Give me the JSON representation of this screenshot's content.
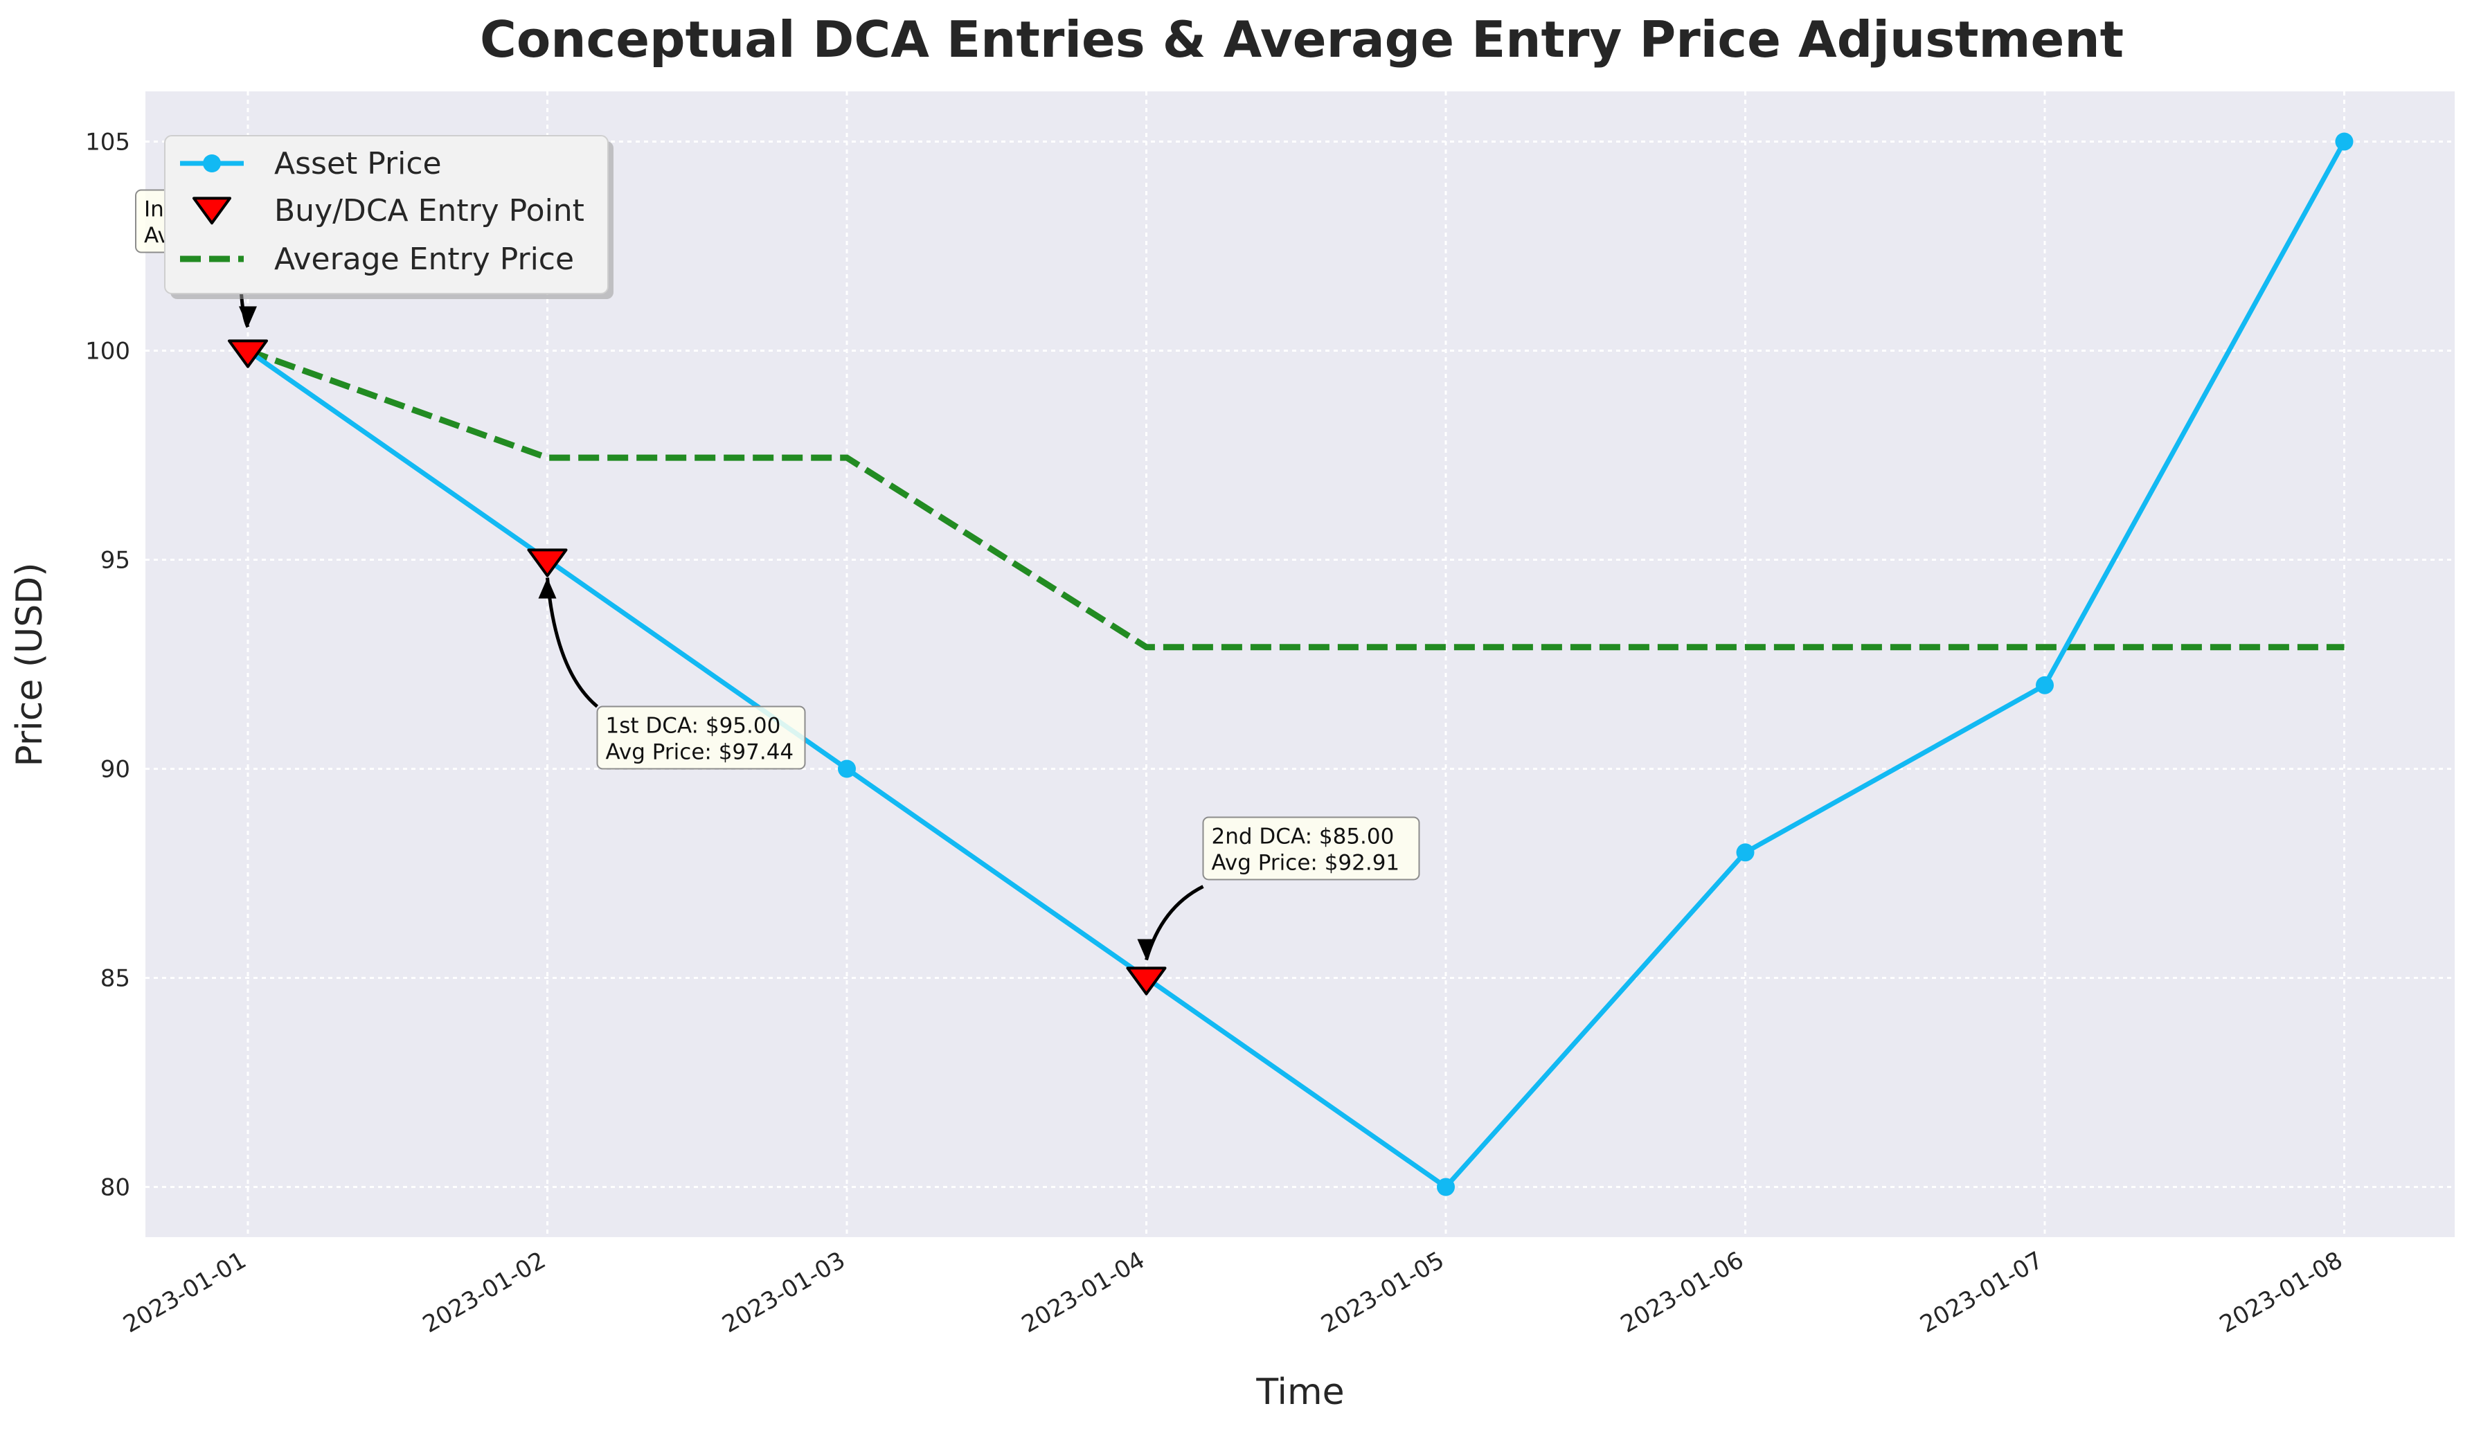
{
  "chart_data": {
    "type": "line",
    "title": "Conceptual DCA Entries & Average Entry Price Adjustment",
    "xlabel": "Time",
    "ylabel": "Price (USD)",
    "x": [
      "2023-01-01",
      "2023-01-02",
      "2023-01-03",
      "2023-01-04",
      "2023-01-05",
      "2023-01-06",
      "2023-01-07",
      "2023-01-08"
    ],
    "ylim": [
      78.8,
      106.2
    ],
    "yticks": [
      80,
      85,
      90,
      95,
      100,
      105
    ],
    "grid": true,
    "legend_position": "top-left",
    "series": [
      {
        "name": "Asset Price",
        "style": "line-with-markers",
        "color": "#12b9f3",
        "values": [
          100,
          95,
          90,
          85,
          80,
          88,
          92,
          105
        ]
      },
      {
        "name": "Buy/DCA Entry Point",
        "style": "triangle-down-markers",
        "color": "#ff0000",
        "points": [
          {
            "x": "2023-01-01",
            "y": 100
          },
          {
            "x": "2023-01-02",
            "y": 95
          },
          {
            "x": "2023-01-04",
            "y": 85
          }
        ]
      },
      {
        "name": "Average Entry Price",
        "style": "dashed-line",
        "color": "#228b22",
        "values": [
          100,
          97.44,
          97.44,
          92.91,
          92.91,
          92.91,
          92.91,
          92.91
        ]
      }
    ],
    "annotations": [
      {
        "x": "2023-01-01",
        "y": 100,
        "line1": "Initial Buy: $100.00",
        "line2": "Avg Price: $100.00"
      },
      {
        "x": "2023-01-02",
        "y": 95,
        "line1": "1st DCA: $95.00",
        "line2": "Avg Price: $97.44"
      },
      {
        "x": "2023-01-04",
        "y": 85,
        "line1": "2nd DCA: $85.00",
        "line2": "Avg Price: $92.91"
      }
    ]
  }
}
